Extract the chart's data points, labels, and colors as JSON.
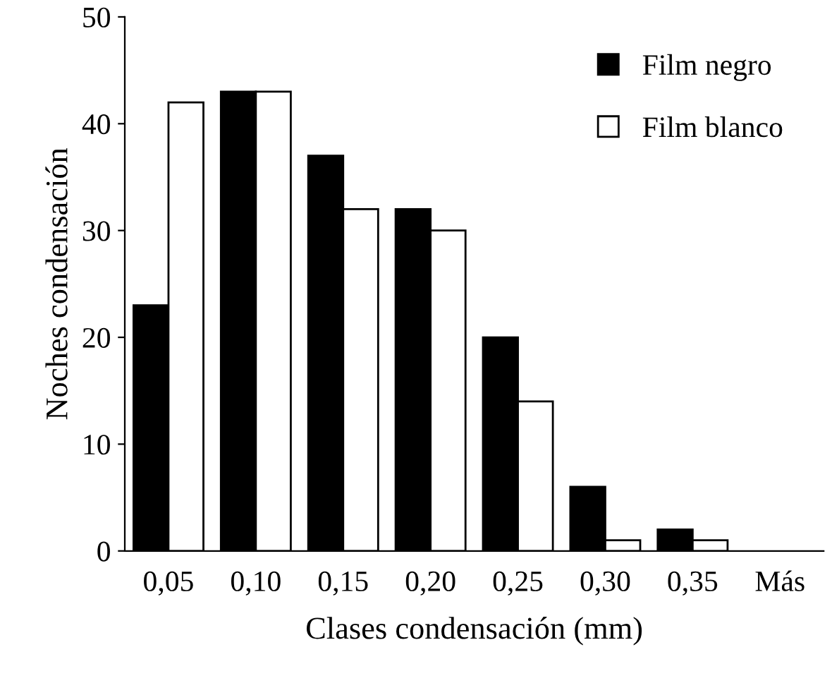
{
  "chart_data": {
    "type": "bar",
    "xlabel": "Clases condensación (mm)",
    "ylabel": "Noches condensación",
    "categories": [
      "0,05",
      "0,10",
      "0,15",
      "0,20",
      "0,25",
      "0,30",
      "0,35",
      "Más"
    ],
    "series": [
      {
        "name": "Film negro",
        "color": "#000000",
        "values": [
          23,
          43,
          37,
          32,
          20,
          6,
          2,
          null
        ]
      },
      {
        "name": "Film blanco",
        "color": "#ffffff",
        "values": [
          42,
          43,
          32,
          30,
          14,
          1,
          1,
          null
        ]
      }
    ],
    "ylim": [
      0,
      50
    ],
    "yticks": [
      0,
      10,
      20,
      30,
      40,
      50
    ],
    "grid": false,
    "legend": "top right"
  }
}
